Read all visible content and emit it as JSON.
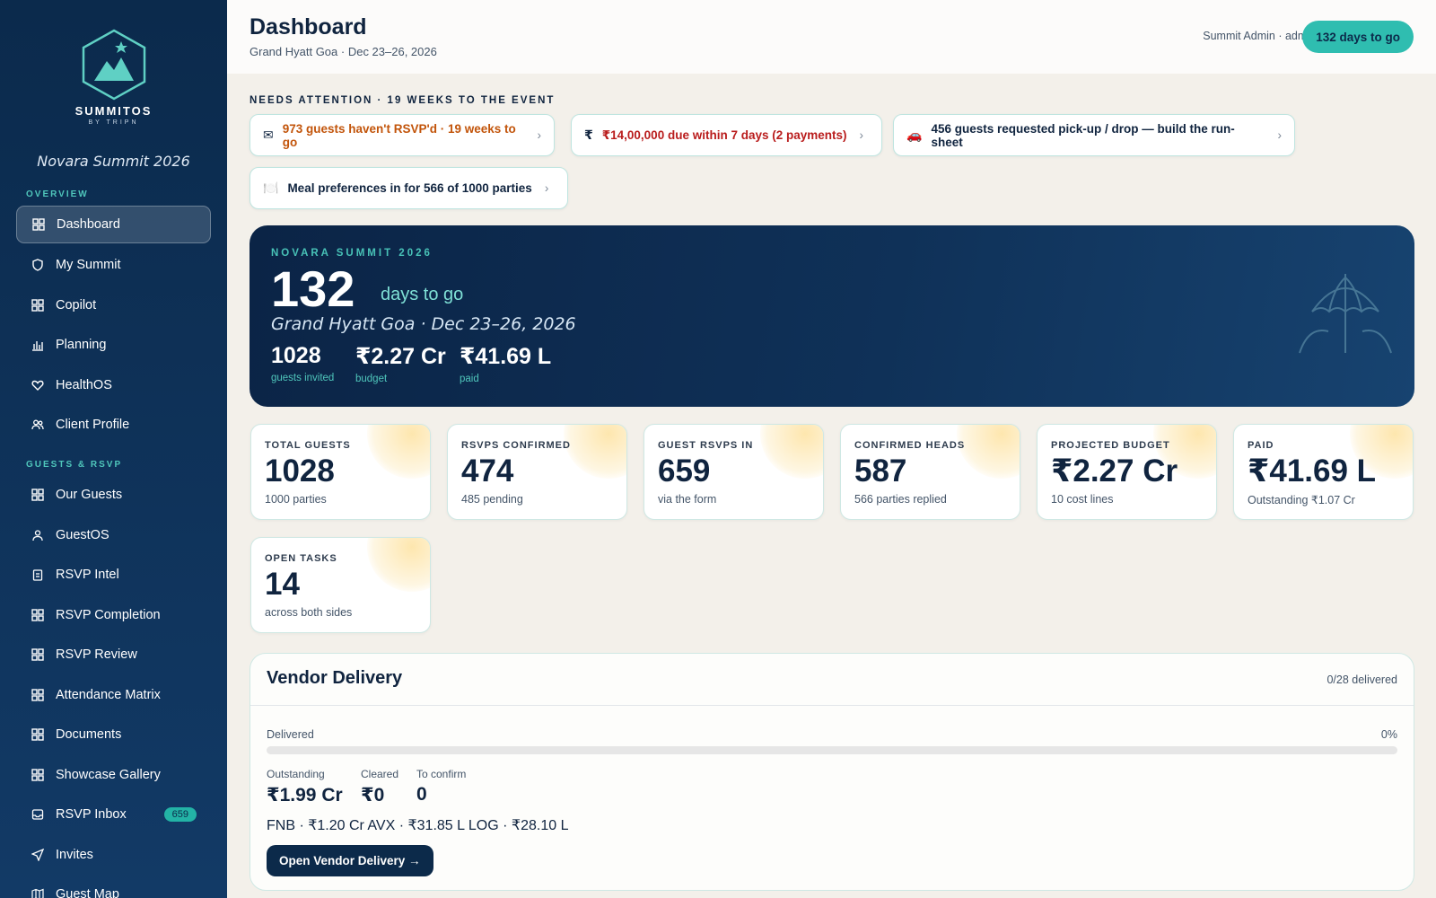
{
  "sidebar": {
    "brand": "SUMMITOS",
    "brand_sub": "BY TRIPN",
    "event_name": "Novara Summit 2026",
    "section_overview": "OVERVIEW",
    "section_guests": "GUESTS & RSVP",
    "items": [
      {
        "label": "Dashboard",
        "icon": "grid-icon",
        "active": true
      },
      {
        "label": "My Summit",
        "icon": "shield-icon"
      },
      {
        "label": "Copilot",
        "icon": "grid-icon"
      },
      {
        "label": "Planning",
        "icon": "bar-chart-icon"
      },
      {
        "label": "HealthOS",
        "icon": "heart-icon"
      },
      {
        "label": "Client Profile",
        "icon": "users-icon"
      },
      {
        "label": "Our Guests",
        "icon": "grid-icon"
      },
      {
        "label": "GuestOS",
        "icon": "user-icon"
      },
      {
        "label": "RSVP Intel",
        "icon": "clipboard-icon"
      },
      {
        "label": "RSVP Completion",
        "icon": "grid-icon"
      },
      {
        "label": "RSVP Review",
        "icon": "grid-icon"
      },
      {
        "label": "Attendance Matrix",
        "icon": "grid-icon"
      },
      {
        "label": "Documents",
        "icon": "grid-icon"
      },
      {
        "label": "Showcase Gallery",
        "icon": "grid-icon"
      },
      {
        "label": "RSVP Inbox",
        "icon": "inbox-icon",
        "badge": "659"
      },
      {
        "label": "Invites",
        "icon": "send-icon"
      },
      {
        "label": "Guest Map",
        "icon": "map-icon"
      }
    ]
  },
  "header": {
    "title": "Dashboard",
    "subtitle": "Grand Hyatt Goa · Dec 23–26, 2026",
    "user": "Summit Admin · admin",
    "days_pill": "132 days to go"
  },
  "attention": {
    "label": "NEEDS ATTENTION · 19 WEEKS TO THE EVENT",
    "items": [
      {
        "icon": "✉",
        "text": "973 guests haven't RSVP'd · 19 weeks to go"
      },
      {
        "icon": "₹",
        "text": "₹14,00,000 due within 7 days (2 payments)"
      },
      {
        "icon": "🚗",
        "text": "456 guests requested pick-up / drop — build the run-sheet"
      },
      {
        "icon": "🍽️",
        "text": "Meal preferences in for 566 of 1000 parties"
      }
    ]
  },
  "hero": {
    "kicker": "NOVARA SUMMIT 2026",
    "days": "132",
    "days_label": "days to go",
    "venue": "Grand Hyatt Goa · Dec 23–26, 2026",
    "stats": [
      {
        "value": "1028",
        "label": "guests invited"
      },
      {
        "value": "₹2.27 Cr",
        "label": "budget"
      },
      {
        "value": "₹41.69 L",
        "label": "paid"
      }
    ]
  },
  "stats": [
    {
      "label": "TOTAL GUESTS",
      "value": "1028",
      "sub": "1000 parties"
    },
    {
      "label": "RSVPS CONFIRMED",
      "value": "474",
      "sub": "485 pending"
    },
    {
      "label": "GUEST RSVPS IN",
      "value": "659",
      "sub": "via the form"
    },
    {
      "label": "CONFIRMED HEADS",
      "value": "587",
      "sub": "566 parties replied"
    },
    {
      "label": "PROJECTED BUDGET",
      "value": "₹2.27 Cr",
      "sub": "10 cost lines"
    },
    {
      "label": "PAID",
      "value": "₹41.69 L",
      "sub": "Outstanding ₹1.07 Cr"
    },
    {
      "label": "OPEN TASKS",
      "value": "14",
      "sub": "across both sides"
    }
  ],
  "vendor": {
    "title": "Vendor Delivery",
    "count": "0/28 delivered",
    "delivered_label": "Delivered",
    "delivered_pct": "0%",
    "delivered_fraction": 0,
    "stats": [
      {
        "label": "Outstanding",
        "value": "₹1.99 Cr"
      },
      {
        "label": "Cleared",
        "value": "₹0"
      },
      {
        "label": "To confirm",
        "value": "0"
      }
    ],
    "breakdown": "FNB · ₹1.20 Cr AVX · ₹31.85 L LOG · ₹28.10 L",
    "button": "Open Vendor Delivery →"
  }
}
